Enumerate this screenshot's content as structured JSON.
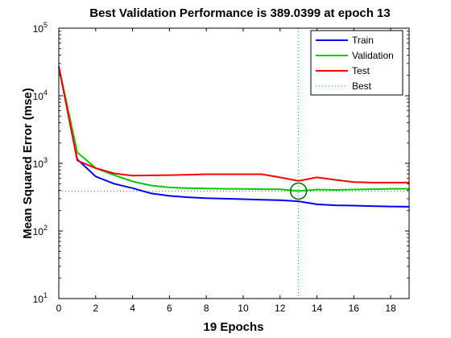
{
  "chart_data": {
    "type": "line",
    "title": "Best Validation Performance is 389.0399 at epoch 13",
    "xlabel": "19 Epochs",
    "ylabel": "Mean Squared Error  (mse)",
    "xlim": [
      0,
      19
    ],
    "ylim": [
      10,
      100000
    ],
    "yscale": "log",
    "x_ticks": [
      0,
      2,
      4,
      6,
      8,
      10,
      12,
      14,
      16,
      18
    ],
    "y_ticks": [
      {
        "value": 10,
        "base": "10",
        "exp": "1"
      },
      {
        "value": 100,
        "base": "10",
        "exp": "2"
      },
      {
        "value": 1000,
        "base": "10",
        "exp": "3"
      },
      {
        "value": 10000,
        "base": "10",
        "exp": "4"
      },
      {
        "value": 100000,
        "base": "10",
        "exp": "5"
      }
    ],
    "x": [
      0,
      1,
      2,
      3,
      4,
      5,
      6,
      7,
      8,
      9,
      10,
      11,
      12,
      13,
      14,
      15,
      16,
      17,
      18,
      19
    ],
    "series": [
      {
        "name": "Train",
        "color": "#0000ff",
        "values": [
          27000,
          1150,
          640,
          500,
          430,
          360,
          330,
          315,
          305,
          300,
          295,
          290,
          285,
          275,
          248,
          240,
          237,
          233,
          230,
          228
        ]
      },
      {
        "name": "Validation",
        "color": "#00cc00",
        "values": [
          27000,
          1450,
          850,
          670,
          540,
          470,
          440,
          430,
          425,
          420,
          418,
          415,
          412,
          389.0399,
          410,
          405,
          410,
          415,
          420,
          420
        ]
      },
      {
        "name": "Test",
        "color": "#ff0000",
        "values": [
          27000,
          1100,
          850,
          710,
          660,
          665,
          670,
          680,
          690,
          690,
          690,
          690,
          620,
          550,
          620,
          570,
          530,
          520,
          520,
          520
        ]
      }
    ],
    "best": {
      "label": "Best",
      "epoch": 13,
      "value": 389.0399,
      "color": "#00cc00"
    },
    "legend": {
      "position": "top-right",
      "entries": [
        "Train",
        "Validation",
        "Test",
        "Best"
      ]
    },
    "grid": false
  }
}
